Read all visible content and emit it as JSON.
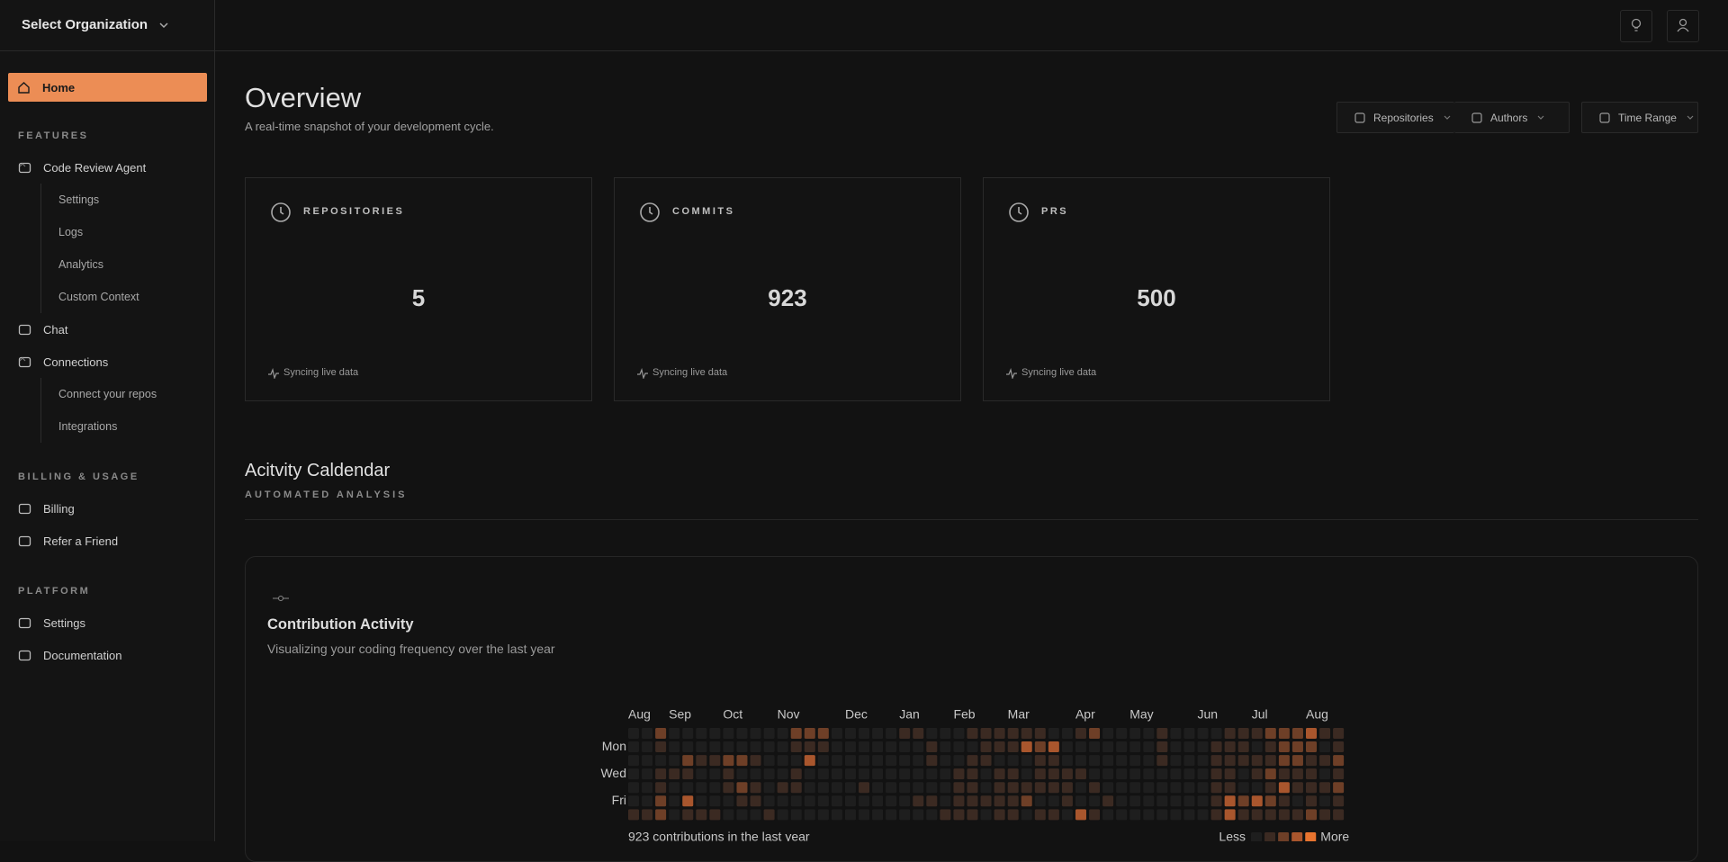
{
  "topbar": {
    "org_selector": "Select Organization"
  },
  "sidebar": {
    "home": "Home",
    "groups": [
      {
        "heading": "FEATURES",
        "items": [
          {
            "label": "Code Review Agent",
            "children": [
              "Settings",
              "Logs",
              "Analytics",
              "Custom Context"
            ]
          },
          {
            "label": "Chat"
          },
          {
            "label": "Connections",
            "children": [
              "Connect your repos",
              "Integrations"
            ]
          }
        ]
      },
      {
        "heading": "BILLING & USAGE",
        "items": [
          {
            "label": "Billing"
          },
          {
            "label": "Refer a Friend"
          }
        ]
      },
      {
        "heading": "PLATFORM",
        "items": [
          {
            "label": "Settings"
          },
          {
            "label": "Documentation"
          }
        ]
      }
    ]
  },
  "header": {
    "title": "Overview",
    "subtitle": "A real-time snapshot of your development cycle."
  },
  "filters": [
    "Repositories",
    "Authors",
    "Time Range"
  ],
  "stats": [
    {
      "label": "REPOSITORIES",
      "value": "5",
      "status": "Syncing live data"
    },
    {
      "label": "COMMITS",
      "value": "923",
      "status": "Syncing live data"
    },
    {
      "label": "PRS",
      "value": "500",
      "status": "Syncing live data"
    }
  ],
  "activity": {
    "title": "Acitvity Caldendar",
    "subtitle": "AUTOMATED ANALYSIS",
    "panel_title": "Contribution Activity",
    "panel_subtitle": "Visualizing your coding frequency over the last year",
    "heatmap": {
      "week_labels": [
        "Aug",
        null,
        null,
        "Sep",
        null,
        null,
        null,
        "Oct",
        null,
        null,
        null,
        "Nov",
        null,
        null,
        null,
        null,
        "Dec",
        null,
        null,
        null,
        "Jan",
        null,
        null,
        null,
        "Feb",
        null,
        null,
        null,
        "Mar",
        null,
        null,
        null,
        null,
        "Apr",
        null,
        null,
        null,
        "May",
        null,
        null,
        null,
        null,
        "Jun",
        null,
        null,
        null,
        "Jul",
        null,
        null,
        null,
        "Aug",
        null,
        null
      ],
      "day_labels": [
        null,
        "Mon",
        null,
        "Wed",
        null,
        "Fri",
        null
      ],
      "colors": [
        "#1e1e1e",
        "#3b2a22",
        "#6e3f27",
        "#a9562d",
        "#e8742f"
      ],
      "weeks": [
        [
          0,
          0,
          0,
          0,
          0,
          0,
          1
        ],
        [
          0,
          0,
          0,
          0,
          0,
          0,
          1
        ],
        [
          2,
          1,
          0,
          1,
          1,
          2,
          2
        ],
        [
          0,
          0,
          0,
          1,
          0,
          0,
          0
        ],
        [
          0,
          0,
          2,
          1,
          0,
          3,
          1
        ],
        [
          0,
          0,
          1,
          0,
          0,
          0,
          1
        ],
        [
          0,
          0,
          1,
          0,
          0,
          0,
          1
        ],
        [
          0,
          0,
          2,
          1,
          1,
          0,
          0
        ],
        [
          0,
          0,
          2,
          0,
          2,
          1,
          0
        ],
        [
          0,
          0,
          1,
          0,
          1,
          1,
          0
        ],
        [
          0,
          0,
          0,
          0,
          0,
          0,
          1
        ],
        [
          0,
          0,
          0,
          0,
          1,
          0,
          0
        ],
        [
          2,
          1,
          0,
          1,
          1,
          0,
          0
        ],
        [
          2,
          1,
          3,
          0,
          0,
          0,
          0
        ],
        [
          2,
          1,
          0,
          0,
          0,
          0,
          0
        ],
        [
          0,
          0,
          0,
          0,
          0,
          0,
          0
        ],
        [
          0,
          0,
          0,
          0,
          0,
          0,
          0
        ],
        [
          0,
          0,
          0,
          0,
          1,
          0,
          0
        ],
        [
          0,
          0,
          0,
          0,
          0,
          0,
          0
        ],
        [
          0,
          0,
          0,
          0,
          0,
          0,
          0
        ],
        [
          1,
          0,
          0,
          0,
          0,
          0,
          0
        ],
        [
          1,
          0,
          0,
          0,
          0,
          1,
          0
        ],
        [
          0,
          1,
          1,
          0,
          0,
          1,
          0
        ],
        [
          0,
          0,
          0,
          0,
          0,
          0,
          1
        ],
        [
          0,
          0,
          0,
          1,
          1,
          1,
          1
        ],
        [
          1,
          0,
          1,
          1,
          1,
          1,
          1
        ],
        [
          1,
          1,
          1,
          0,
          0,
          1,
          0
        ],
        [
          1,
          1,
          0,
          1,
          1,
          1,
          1
        ],
        [
          1,
          1,
          0,
          1,
          1,
          1,
          1
        ],
        [
          1,
          3,
          0,
          0,
          1,
          2,
          0
        ],
        [
          1,
          2,
          1,
          1,
          1,
          0,
          1
        ],
        [
          0,
          3,
          1,
          1,
          1,
          0,
          1
        ],
        [
          0,
          0,
          0,
          1,
          1,
          1,
          0
        ],
        [
          1,
          0,
          0,
          1,
          0,
          0,
          3
        ],
        [
          2,
          0,
          0,
          0,
          1,
          0,
          1
        ],
        [
          0,
          0,
          0,
          0,
          0,
          1,
          0
        ],
        [
          0,
          0,
          0,
          0,
          0,
          0,
          0
        ],
        [
          0,
          0,
          0,
          0,
          0,
          0,
          0
        ],
        [
          0,
          0,
          0,
          0,
          0,
          0,
          0
        ],
        [
          1,
          1,
          1,
          0,
          0,
          0,
          0
        ],
        [
          0,
          0,
          0,
          0,
          0,
          0,
          0
        ],
        [
          0,
          0,
          0,
          0,
          0,
          0,
          0
        ],
        [
          0,
          0,
          0,
          0,
          0,
          0,
          0
        ],
        [
          0,
          1,
          1,
          1,
          1,
          1,
          1
        ],
        [
          1,
          1,
          1,
          1,
          1,
          3,
          3
        ],
        [
          1,
          1,
          1,
          0,
          0,
          2,
          1
        ],
        [
          1,
          0,
          1,
          1,
          0,
          3,
          1
        ],
        [
          2,
          1,
          1,
          2,
          1,
          2,
          1
        ],
        [
          2,
          2,
          2,
          1,
          3,
          1,
          1
        ],
        [
          2,
          2,
          2,
          1,
          1,
          0,
          1
        ],
        [
          3,
          2,
          1,
          1,
          1,
          1,
          2
        ],
        [
          1,
          0,
          1,
          0,
          1,
          0,
          1
        ],
        [
          1,
          1,
          2,
          1,
          2,
          1,
          1
        ]
      ],
      "summary": "923 contributions in the last year",
      "legend_less": "Less",
      "legend_more": "More",
      "legend_levels": [
        0,
        1,
        2,
        3,
        4
      ]
    }
  }
}
